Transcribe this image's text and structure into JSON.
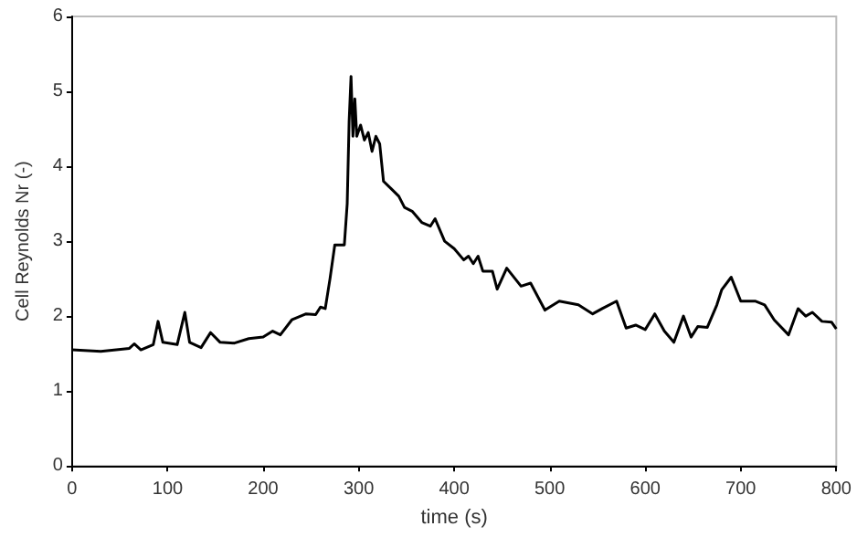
{
  "chart_data": {
    "type": "line",
    "xlabel": "time (s)",
    "ylabel": "Cell Reynolds Nr (-)",
    "xlim": [
      0,
      800
    ],
    "xticks": [
      0,
      100,
      200,
      300,
      400,
      500,
      600,
      700,
      800
    ],
    "ylim": [
      0,
      6
    ],
    "yticks": [
      0,
      1,
      2,
      3,
      4,
      5,
      6
    ],
    "grid": false,
    "marker": "none",
    "line_style": "solid",
    "series": [
      {
        "color": "#000000",
        "x": [
          0,
          30,
          60,
          65,
          72,
          85,
          90,
          95,
          110,
          118,
          123,
          135,
          145,
          155,
          170,
          185,
          200,
          210,
          218,
          230,
          245,
          255,
          260,
          265,
          270,
          275,
          285,
          288,
          290,
          292,
          294,
          296,
          298,
          302,
          306,
          310,
          314,
          318,
          322,
          326,
          334,
          342,
          348,
          356,
          366,
          375,
          380,
          390,
          400,
          410,
          415,
          420,
          425,
          430,
          440,
          445,
          455,
          470,
          480,
          490,
          495,
          510,
          530,
          545,
          555,
          570,
          580,
          590,
          600,
          610,
          620,
          630,
          640,
          648,
          655,
          665,
          675,
          680,
          690,
          700,
          715,
          725,
          735,
          750,
          760,
          768,
          775,
          785,
          795,
          800
        ],
        "values": [
          1.55,
          1.53,
          1.57,
          1.63,
          1.55,
          1.62,
          1.93,
          1.65,
          1.62,
          2.05,
          1.65,
          1.58,
          1.78,
          1.65,
          1.64,
          1.7,
          1.72,
          1.8,
          1.75,
          1.95,
          2.03,
          2.02,
          2.12,
          2.1,
          2.5,
          2.95,
          2.95,
          3.5,
          4.6,
          5.2,
          4.4,
          4.9,
          4.4,
          4.55,
          4.35,
          4.45,
          4.2,
          4.4,
          4.3,
          3.8,
          3.7,
          3.6,
          3.45,
          3.4,
          3.25,
          3.2,
          3.3,
          3.0,
          2.9,
          2.75,
          2.8,
          2.7,
          2.8,
          2.6,
          2.6,
          2.36,
          2.64,
          2.4,
          2.44,
          2.2,
          2.08,
          2.2,
          2.15,
          2.03,
          2.1,
          2.2,
          1.84,
          1.88,
          1.82,
          2.03,
          1.8,
          1.65,
          2.0,
          1.72,
          1.86,
          1.85,
          2.15,
          2.35,
          2.52,
          2.2,
          2.2,
          2.15,
          1.95,
          1.75,
          2.1,
          2.0,
          2.05,
          1.93,
          1.92,
          1.83
        ]
      }
    ]
  }
}
